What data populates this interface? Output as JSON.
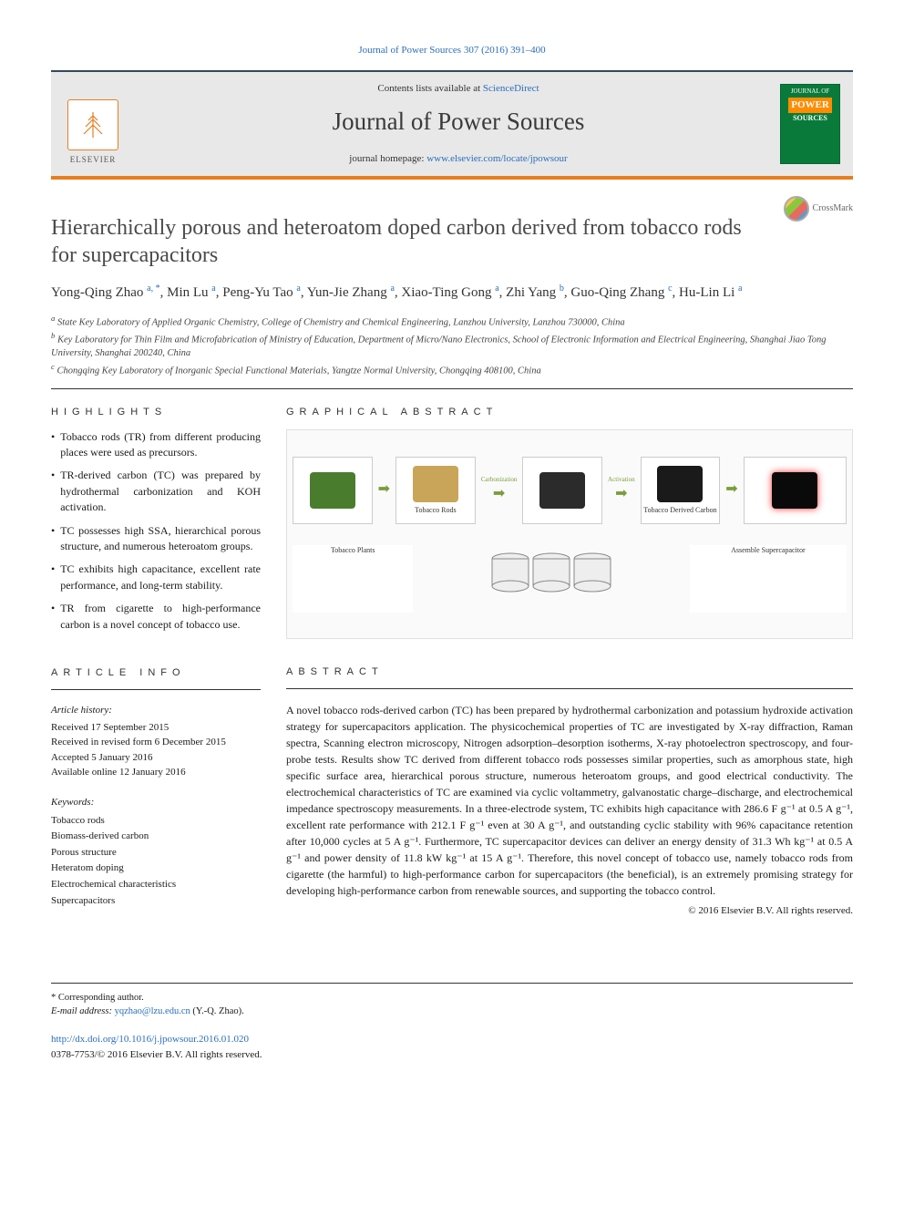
{
  "citation": "Journal of Power Sources 307 (2016) 391–400",
  "header": {
    "contents_prefix": "Contents lists available at ",
    "contents_link": "ScienceDirect",
    "journal_name": "Journal of Power Sources",
    "homepage_prefix": "journal homepage: ",
    "homepage_url": "www.elsevier.com/locate/jpowsour",
    "publisher": "ELSEVIER",
    "cover_top": "JOURNAL OF",
    "cover_power": "POWER",
    "cover_sources": "SOURCES"
  },
  "crossmark_label": "CrossMark",
  "title": "Hierarchically porous and heteroatom doped carbon derived from tobacco rods for supercapacitors",
  "authors_html": "Yong-Qing Zhao <sup>a, *</sup>, Min Lu <sup>a</sup>, Peng-Yu Tao <sup>a</sup>, Yun-Jie Zhang <sup>a</sup>, Xiao-Ting Gong <sup>a</sup>, Zhi Yang <sup>b</sup>, Guo-Qing Zhang <sup>c</sup>, Hu-Lin Li <sup>a</sup>",
  "affiliations": {
    "a": "State Key Laboratory of Applied Organic Chemistry, College of Chemistry and Chemical Engineering, Lanzhou University, Lanzhou 730000, China",
    "b": "Key Laboratory for Thin Film and Microfabrication of Ministry of Education, Department of Micro/Nano Electronics, School of Electronic Information and Electrical Engineering, Shanghai Jiao Tong University, Shanghai 200240, China",
    "c": "Chongqing Key Laboratory of Inorganic Special Functional Materials, Yangtze Normal University, Chongqing 408100, China"
  },
  "section_heads": {
    "highlights": "HIGHLIGHTS",
    "graphical": "GRAPHICAL ABSTRACT",
    "info": "ARTICLE INFO",
    "abstract": "ABSTRACT"
  },
  "highlights": [
    "Tobacco rods (TR) from different producing places were used as precursors.",
    "TR-derived carbon (TC) was prepared by hydrothermal carbonization and KOH activation.",
    "TC possesses high SSA, hierarchical porous structure, and numerous heteroatom groups.",
    "TC exhibits high capacitance, excellent rate performance, and long-term stability.",
    "TR from cigarette to high-performance carbon is a novel concept of tobacco use."
  ],
  "graphical": {
    "step1": "Tobacco Plants",
    "step2": "Tobacco Rods",
    "arrow1": "Carbonization",
    "arrow2": "Activation",
    "step3": "Tobacco Derived Carbon",
    "step4": "Assemble Supercapacitor",
    "colors": {
      "plant": "#4a7c2e",
      "rods": "#c9a55a",
      "carbonized": "#2b2b2b",
      "activated": "#1a1a1a",
      "device_bg": "#0a0a0a",
      "led": "#ff3030"
    }
  },
  "article_info": {
    "history_label": "Article history:",
    "received": "Received 17 September 2015",
    "revised": "Received in revised form 6 December 2015",
    "accepted": "Accepted 5 January 2016",
    "online": "Available online 12 January 2016",
    "keywords_label": "Keywords:",
    "keywords": [
      "Tobacco rods",
      "Biomass-derived carbon",
      "Porous structure",
      "Heteratom doping",
      "Electrochemical characteristics",
      "Supercapacitors"
    ]
  },
  "abstract": "A novel tobacco rods-derived carbon (TC) has been prepared by hydrothermal carbonization and potassium hydroxide activation strategy for supercapacitors application. The physicochemical properties of TC are investigated by X-ray diffraction, Raman spectra, Scanning electron microscopy, Nitrogen adsorption–desorption isotherms, X-ray photoelectron spectroscopy, and four-probe tests. Results show TC derived from different tobacco rods possesses similar properties, such as amorphous state, high specific surface area, hierarchical porous structure, numerous heteroatom groups, and good electrical conductivity. The electrochemical characteristics of TC are examined via cyclic voltammetry, galvanostatic charge–discharge, and electrochemical impedance spectroscopy measurements. In a three-electrode system, TC exhibits high capacitance with 286.6 F g⁻¹ at 0.5 A g⁻¹, excellent rate performance with 212.1 F g⁻¹ even at 30 A g⁻¹, and outstanding cyclic stability with 96% capacitance retention after 10,000 cycles at 5 A g⁻¹. Furthermore, TC supercapacitor devices can deliver an energy density of 31.3 Wh kg⁻¹ at 0.5 A g⁻¹ and power density of 11.8 kW kg⁻¹ at 15 A g⁻¹. Therefore, this novel concept of tobacco use, namely tobacco rods from cigarette (the harmful) to high-performance carbon for supercapacitors (the beneficial), is an extremely promising strategy for developing high-performance carbon from renewable sources, and supporting the tobacco control.",
  "copyright": "© 2016 Elsevier B.V. All rights reserved.",
  "footer": {
    "corr_label": "* Corresponding author.",
    "email_label": "E-mail address:",
    "email": "yqzhao@lzu.edu.cn",
    "email_name": "(Y.-Q. Zhao).",
    "doi_url": "http://dx.doi.org/10.1016/j.jpowsour.2016.01.020",
    "issn": "0378-7753/© 2016 Elsevier B.V. All rights reserved."
  }
}
